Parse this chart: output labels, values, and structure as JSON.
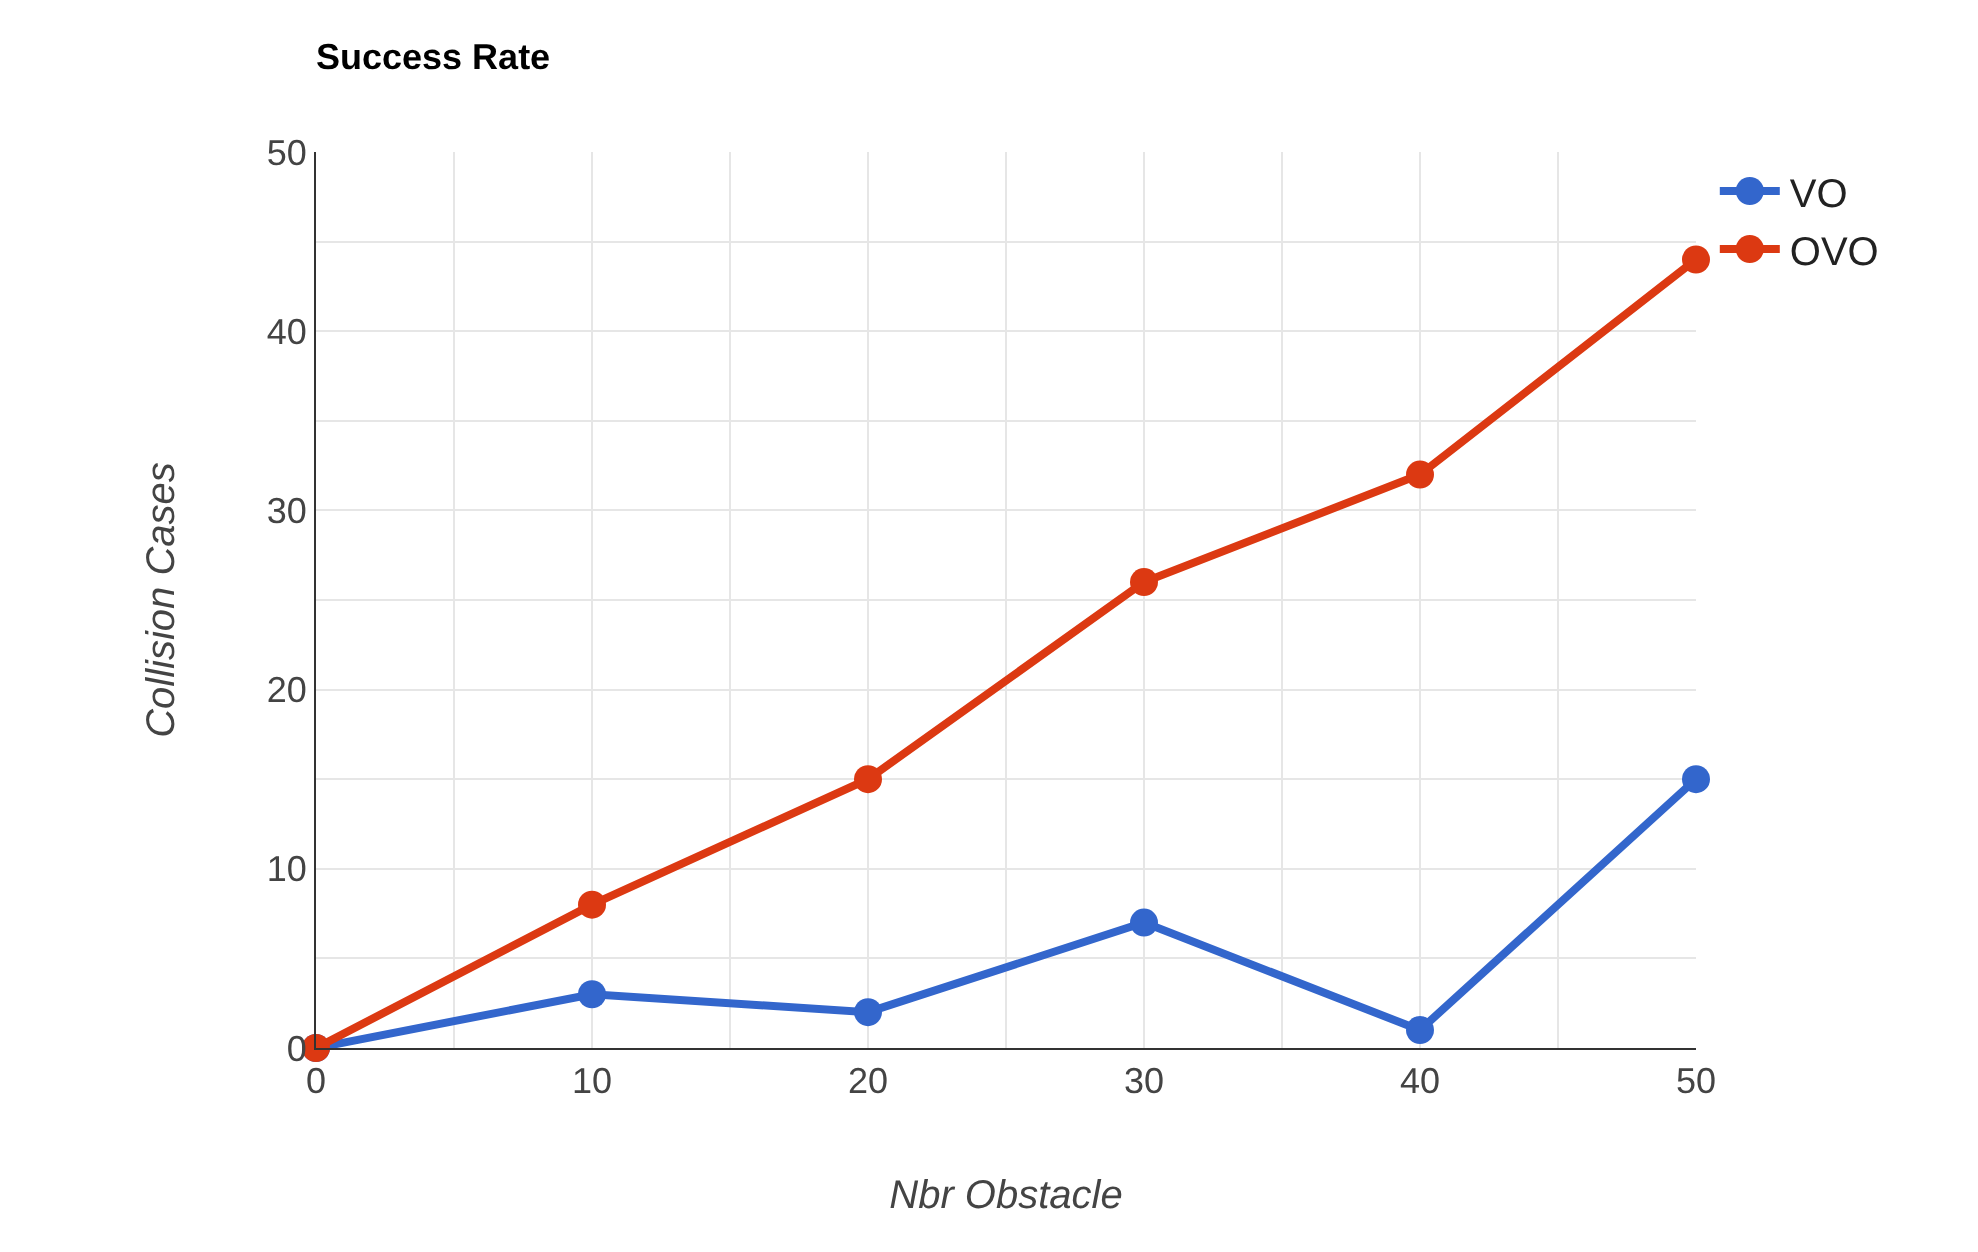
{
  "chart_data": {
    "type": "line",
    "title": "Success Rate",
    "xlabel": "Nbr Obstacle",
    "ylabel": "Collision Cases",
    "x": [
      0,
      10,
      20,
      30,
      40,
      50
    ],
    "series": [
      {
        "name": "VO",
        "color": "#3366cc",
        "values": [
          0,
          3,
          2,
          7,
          1,
          15
        ]
      },
      {
        "name": "OVO",
        "color": "#dc3912",
        "values": [
          0,
          8,
          15,
          26,
          32,
          44
        ]
      }
    ],
    "xlim": [
      0,
      50
    ],
    "ylim": [
      0,
      50
    ],
    "xticks": [
      0,
      {
        "value": 5,
        "label": null
      },
      10,
      {
        "value": 15,
        "label": null
      },
      20,
      {
        "value": 25,
        "label": null
      },
      30,
      {
        "value": 35,
        "label": null
      },
      40,
      {
        "value": 45,
        "label": null
      },
      50
    ],
    "yticks": [
      0,
      {
        "value": 5,
        "label": null
      },
      10,
      {
        "value": 15,
        "label": null
      },
      20,
      {
        "value": 25,
        "label": null
      },
      30,
      {
        "value": 35,
        "label": null
      },
      40,
      {
        "value": 45,
        "label": null
      },
      50
    ],
    "grid": true,
    "legend": "top right",
    "marker": "circle",
    "line_style": "solid"
  }
}
